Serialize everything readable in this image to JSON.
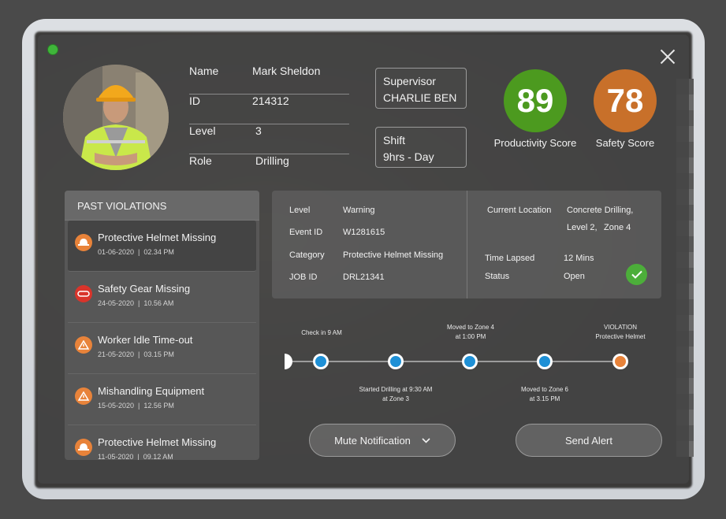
{
  "status": {
    "color": "#3fb53a"
  },
  "profile": {
    "name_label": "Name",
    "name": "Mark Sheldon",
    "id_label": "ID",
    "id": "214312",
    "level_label": "Level",
    "level": "3",
    "role_label": "Role",
    "role": "Drilling"
  },
  "supervisor": {
    "label": "Supervisor",
    "value": "CHARLIE BEN"
  },
  "shift": {
    "label": "Shift",
    "value": "9hrs - Day"
  },
  "scores": [
    {
      "value": "89",
      "label": "Productivity Score",
      "color": "#4c9a1f"
    },
    {
      "value": "78",
      "label": "Safety Score",
      "color": "#c8702a"
    }
  ],
  "violations": {
    "title": "PAST VIOLATIONS",
    "items": [
      {
        "title": "Protective Helmet Missing",
        "date": "01-06-2020",
        "time": "02.34 PM",
        "icon": "helmet-icon",
        "color": "#e8833a"
      },
      {
        "title": "Safety Gear Missing",
        "date": "24-05-2020",
        "time": "10.56 AM",
        "icon": "goggles-icon",
        "color": "#d9342b"
      },
      {
        "title": "Worker Idle Time-out",
        "date": "21-05-2020",
        "time": "03.15 PM",
        "icon": "warning-icon",
        "color": "#e8833a"
      },
      {
        "title": "Mishandling Equipment",
        "date": "15-05-2020",
        "time": "12.56 PM",
        "icon": "warning-icon",
        "color": "#e8833a"
      },
      {
        "title": "Protective Helmet Missing",
        "date": "11-05-2020",
        "time": "09.12 AM",
        "icon": "helmet-icon",
        "color": "#e8833a"
      }
    ]
  },
  "details": {
    "level_label": "Level",
    "level": "Warning",
    "event_label": "Event ID",
    "event": "W1281615",
    "category_label": "Category",
    "category": "Protective Helmet Missing",
    "job_label": "JOB ID",
    "job": "DRL21341",
    "location_label": "Current Location",
    "location_l1": "Concrete Drilling,",
    "location_l2": "Level 2,",
    "location_l3": "Zone 4",
    "lapsed_label": "Time Lapsed",
    "lapsed": "12 Mins",
    "status_label": "Status",
    "status": "Open"
  },
  "timeline": {
    "above": [
      {
        "l1": "Check in 9 AM",
        "l2": ""
      },
      {
        "l1": "Moved to Zone 4",
        "l2": "at 1:00 PM"
      },
      {
        "l1": "VIOLATION",
        "l2": "Protective Helmet"
      }
    ],
    "below": [
      {
        "l1": "Started Drilling at 9:30 AM",
        "l2": "at Zone 3"
      },
      {
        "l1": "Moved to Zone 6",
        "l2": "at 3.15 PM"
      }
    ],
    "dot_color": "#1e90d6",
    "violation_color": "#e8833a"
  },
  "actions": {
    "mute": "Mute Notification",
    "alert": "Send Alert"
  }
}
